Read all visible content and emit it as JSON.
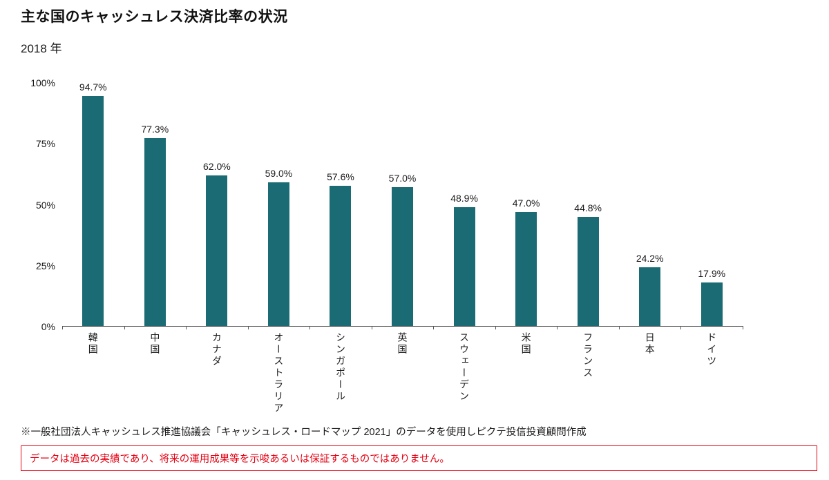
{
  "page": {
    "title": "主な国のキャッシュレス決済比率の状況",
    "subtitle": "2018 年",
    "footnote": "※一般社団法人キャッシュレス推進協議会「キャッシュレス・ロードマップ 2021」のデータを使用しピクテ投信投資顧問作成",
    "disclaimer": "データは過去の実績であり、将来の運用成果等を示唆あるいは保証するものではありません。"
  },
  "chart_data": {
    "type": "bar",
    "title": "主な国のキャッシュレス決済比率の状況",
    "subtitle": "2018 年",
    "categories": [
      "韓国",
      "中国",
      "カナダ",
      "オーストラリア",
      "シンガポール",
      "英国",
      "スウェーデン",
      "米国",
      "フランス",
      "日本",
      "ドイツ"
    ],
    "values": [
      94.7,
      77.3,
      62.0,
      59.0,
      57.6,
      57.0,
      48.9,
      47.0,
      44.8,
      24.2,
      17.9
    ],
    "value_labels": [
      "94.7%",
      "77.3%",
      "62.0%",
      "59.0%",
      "57.6%",
      "57.0%",
      "48.9%",
      "47.0%",
      "44.8%",
      "24.2%",
      "17.9%"
    ],
    "xlabel": "",
    "ylabel": "",
    "ylim": [
      0,
      100
    ],
    "yticks": [
      "0%",
      "25%",
      "50%",
      "75%",
      "100%"
    ],
    "bar_color": "#1a6b74",
    "axis_color": "#595959",
    "grid": false,
    "legend": false
  }
}
